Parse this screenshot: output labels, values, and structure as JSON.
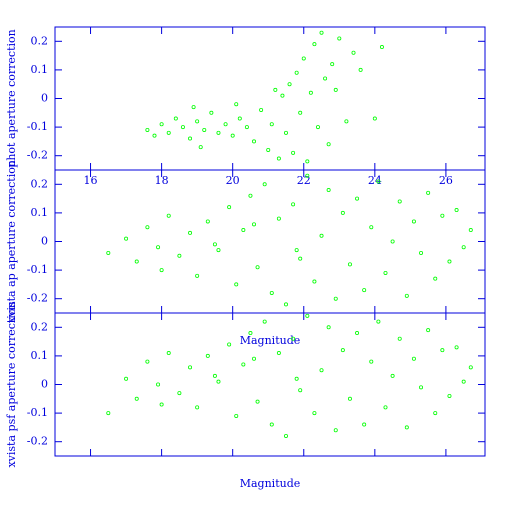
{
  "chart_data": [
    {
      "type": "scatter",
      "y_label": "phot aperture correction",
      "color": "#00ff00",
      "xlim": [
        15,
        27.1
      ],
      "ylim": [
        -0.25,
        0.25
      ],
      "xticks": [
        16,
        18,
        20,
        22,
        24,
        26
      ],
      "yticks": [
        -0.2,
        -0.1,
        0,
        0.1,
        0.2
      ],
      "show_xtick_labels": true,
      "x": [
        17.6,
        17.8,
        18.0,
        18.2,
        18.4,
        18.6,
        18.8,
        19.0,
        19.2,
        19.4,
        19.6,
        19.8,
        20.0,
        20.2,
        20.4,
        20.6,
        20.8,
        21.0,
        21.1,
        21.3,
        21.4,
        21.5,
        21.6,
        21.7,
        21.8,
        21.9,
        22.0,
        22.1,
        22.2,
        22.3,
        22.4,
        22.5,
        22.6,
        22.7,
        22.8,
        22.9,
        23.0,
        23.2,
        23.4,
        23.6,
        24.0,
        24.2,
        19.1,
        18.9,
        20.1,
        21.2
      ],
      "values": [
        -0.11,
        -0.13,
        -0.09,
        -0.12,
        -0.07,
        -0.1,
        -0.14,
        -0.08,
        -0.11,
        -0.05,
        -0.12,
        -0.09,
        -0.13,
        -0.07,
        -0.1,
        -0.15,
        -0.04,
        -0.18,
        -0.09,
        -0.21,
        0.01,
        -0.12,
        0.05,
        -0.19,
        0.09,
        -0.05,
        0.14,
        -0.22,
        0.02,
        0.19,
        -0.1,
        0.23,
        0.07,
        -0.16,
        0.12,
        0.03,
        0.21,
        -0.08,
        0.16,
        0.1,
        -0.07,
        0.18,
        -0.17,
        -0.03,
        -0.02,
        0.03
      ]
    },
    {
      "type": "scatter",
      "y_label": "xvista ap aperture correction",
      "x_label": "Magnitude",
      "color": "#00ff00",
      "xlim": [
        15,
        27.1
      ],
      "ylim": [
        -0.25,
        0.25
      ],
      "xticks": [
        16,
        18,
        20,
        22,
        24,
        26
      ],
      "yticks": [
        -0.2,
        -0.1,
        0,
        0.1,
        0.2
      ],
      "show_xtick_labels": false,
      "x": [
        16.5,
        17.0,
        17.3,
        17.6,
        17.9,
        18.2,
        18.5,
        18.8,
        19.0,
        19.3,
        19.6,
        19.9,
        20.1,
        20.3,
        20.5,
        20.7,
        20.9,
        21.1,
        21.3,
        21.5,
        21.7,
        21.9,
        22.1,
        22.3,
        22.5,
        22.7,
        22.9,
        23.1,
        23.3,
        23.5,
        23.7,
        23.9,
        24.1,
        24.3,
        24.5,
        24.7,
        24.9,
        25.1,
        25.3,
        25.5,
        25.7,
        25.9,
        26.1,
        26.3,
        26.5,
        26.7,
        18.0,
        19.5,
        20.6,
        21.8
      ],
      "values": [
        -0.04,
        0.01,
        -0.07,
        0.05,
        -0.02,
        0.09,
        -0.05,
        0.03,
        -0.12,
        0.07,
        -0.03,
        0.12,
        -0.15,
        0.04,
        0.16,
        -0.09,
        0.2,
        -0.18,
        0.08,
        -0.22,
        0.13,
        -0.06,
        0.23,
        -0.14,
        0.02,
        0.18,
        -0.2,
        0.1,
        -0.08,
        0.15,
        -0.17,
        0.05,
        0.21,
        -0.11,
        0.0,
        0.14,
        -0.19,
        0.07,
        -0.04,
        0.17,
        -0.13,
        0.09,
        -0.07,
        0.11,
        -0.02,
        0.04,
        -0.1,
        -0.01,
        0.06,
        -0.03
      ]
    },
    {
      "type": "scatter",
      "y_label": "xvista psf aperture correction",
      "x_label": "Magnitude",
      "color": "#00ff00",
      "xlim": [
        15,
        27.1
      ],
      "ylim": [
        -0.25,
        0.25
      ],
      "xticks": [
        16,
        18,
        20,
        22,
        24,
        26
      ],
      "yticks": [
        -0.2,
        -0.1,
        0,
        0.1,
        0.2
      ],
      "show_xtick_labels": false,
      "x": [
        16.5,
        17.0,
        17.3,
        17.6,
        17.9,
        18.2,
        18.5,
        18.8,
        19.0,
        19.3,
        19.6,
        19.9,
        20.1,
        20.3,
        20.5,
        20.7,
        20.9,
        21.1,
        21.3,
        21.5,
        21.7,
        21.9,
        22.1,
        22.3,
        22.5,
        22.7,
        22.9,
        23.1,
        23.3,
        23.5,
        23.7,
        23.9,
        24.1,
        24.3,
        24.5,
        24.7,
        24.9,
        25.1,
        25.3,
        25.5,
        25.7,
        25.9,
        26.1,
        26.3,
        26.5,
        26.7,
        18.0,
        19.5,
        20.6,
        21.8
      ],
      "values": [
        -0.1,
        0.02,
        -0.05,
        0.08,
        0.0,
        0.11,
        -0.03,
        0.06,
        -0.08,
        0.1,
        0.01,
        0.14,
        -0.11,
        0.07,
        0.18,
        -0.06,
        0.22,
        -0.14,
        0.11,
        -0.18,
        0.16,
        -0.02,
        0.24,
        -0.1,
        0.05,
        0.2,
        -0.16,
        0.12,
        -0.05,
        0.18,
        -0.14,
        0.08,
        0.22,
        -0.08,
        0.03,
        0.16,
        -0.15,
        0.09,
        -0.01,
        0.19,
        -0.1,
        0.12,
        -0.04,
        0.13,
        0.01,
        0.06,
        -0.07,
        0.03,
        0.09,
        0.02
      ]
    }
  ]
}
